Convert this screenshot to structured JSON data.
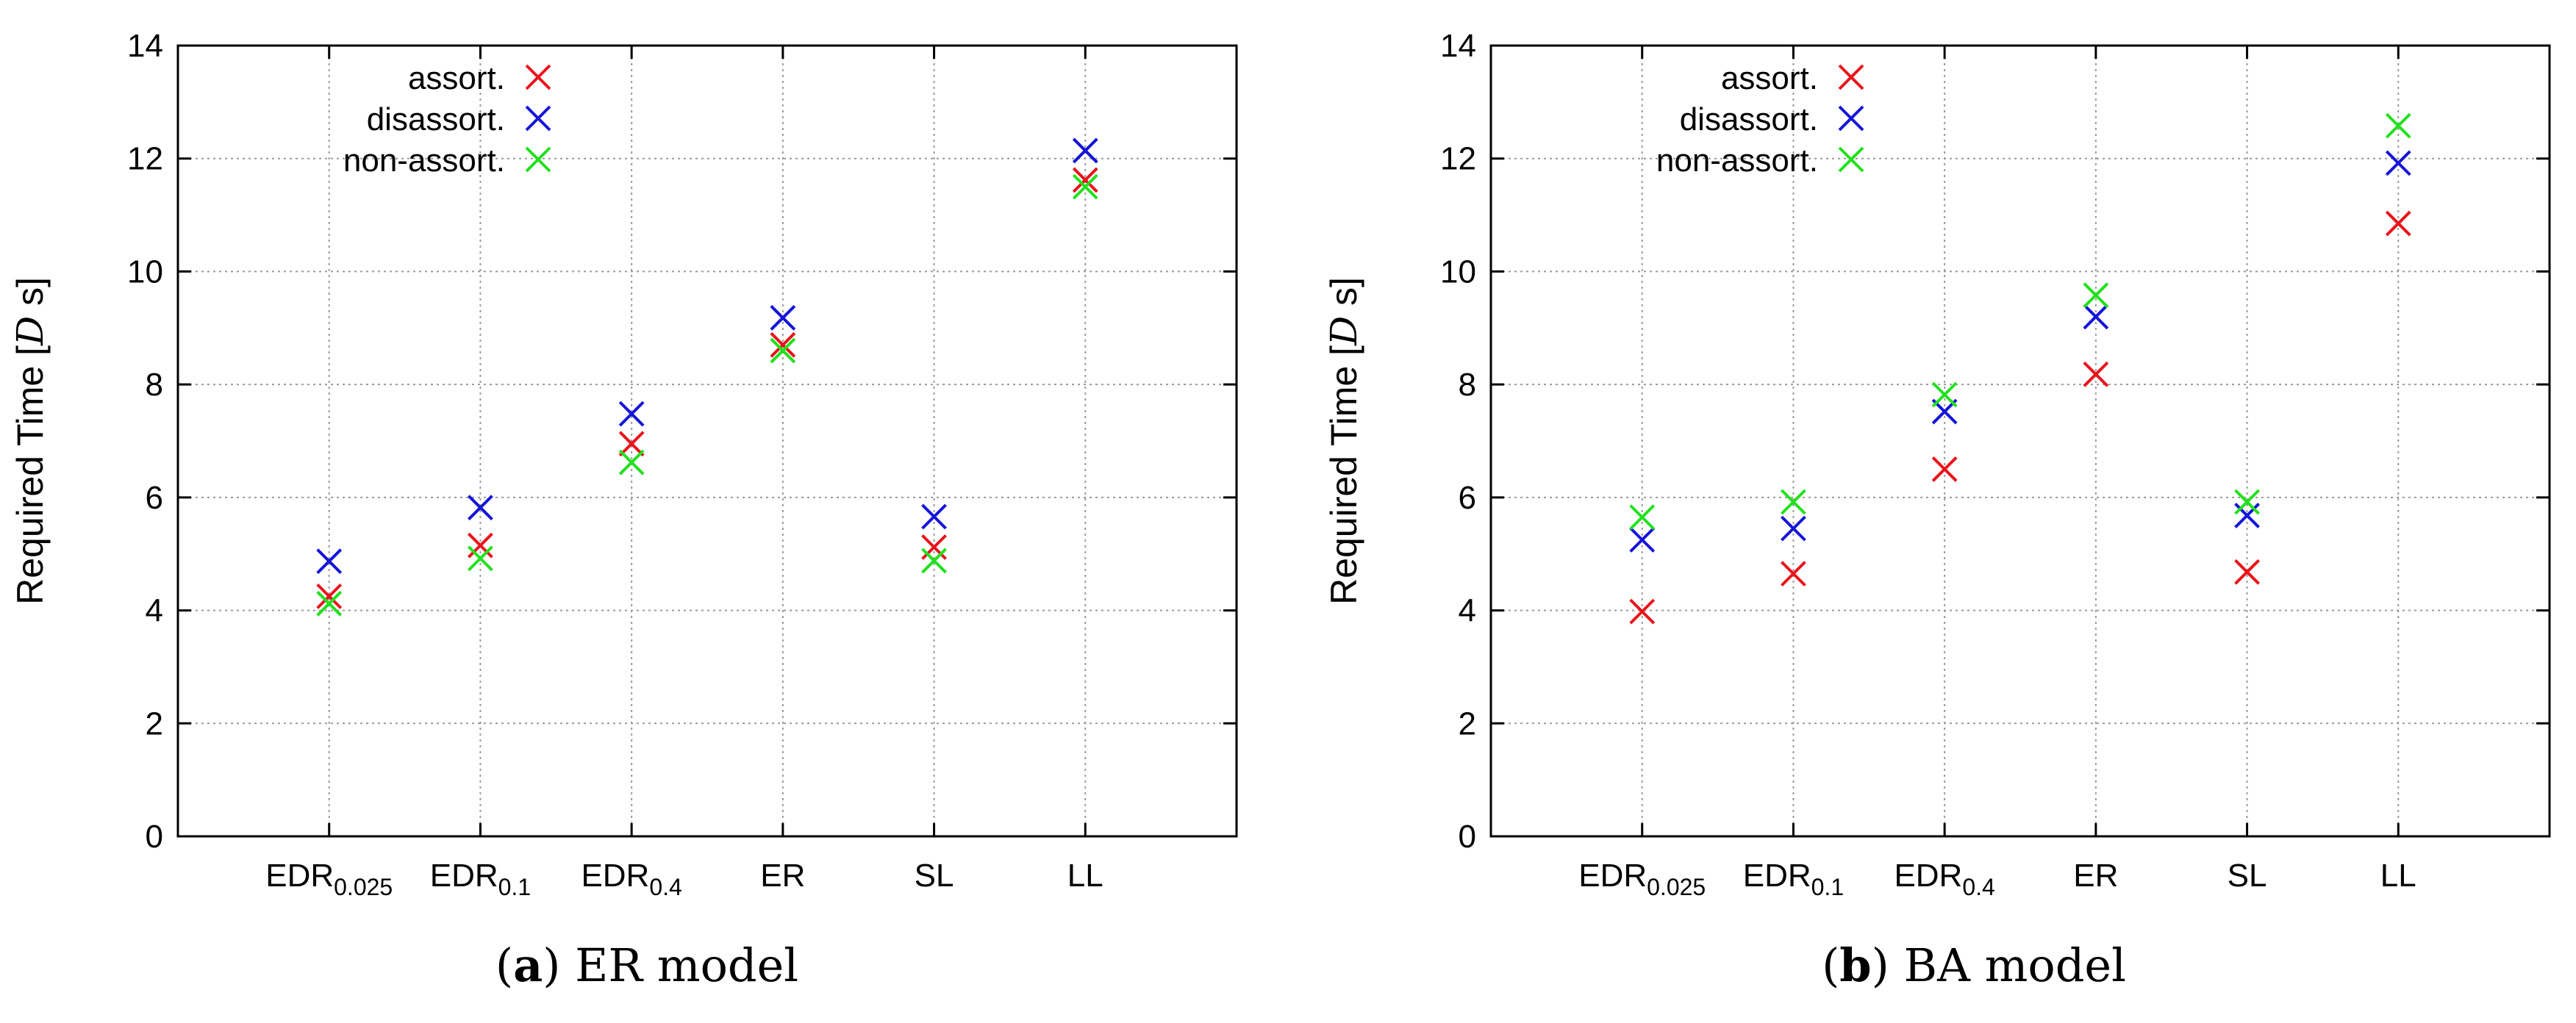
{
  "chart_data": [
    {
      "type": "scatter",
      "id": "a",
      "caption_letter": "(a)",
      "caption_text": "ER model",
      "ylabel": "Required Time [D s]",
      "ylabel_main": "Required Time [",
      "ylabel_var": "D",
      "ylabel_rest": " s]",
      "xlabel": "",
      "ylim": [
        0,
        14
      ],
      "yticks": [
        0,
        2,
        4,
        6,
        8,
        10,
        12,
        14
      ],
      "grid": true,
      "legend_position": "top-left",
      "categories": [
        {
          "base": "EDR",
          "sub": "0.025"
        },
        {
          "base": "EDR",
          "sub": "0.1"
        },
        {
          "base": "EDR",
          "sub": "0.4"
        },
        {
          "base": "ER",
          "sub": ""
        },
        {
          "base": "SL",
          "sub": ""
        },
        {
          "base": "LL",
          "sub": ""
        }
      ],
      "series": [
        {
          "name": "assort.",
          "color": "#e8141c",
          "values": [
            4.25,
            5.15,
            6.95,
            8.7,
            5.12,
            11.62
          ]
        },
        {
          "name": "disassort.",
          "color": "#1414d8",
          "values": [
            4.87,
            5.82,
            7.48,
            9.18,
            5.66,
            12.14
          ]
        },
        {
          "name": "non-assort.",
          "color": "#22e01e",
          "values": [
            4.12,
            4.92,
            6.62,
            8.6,
            4.88,
            11.5
          ]
        }
      ]
    },
    {
      "type": "scatter",
      "id": "b",
      "caption_letter": "(b)",
      "caption_text": "BA model",
      "ylabel": "Required Time [D s]",
      "ylabel_main": "Required Time [",
      "ylabel_var": "D",
      "ylabel_rest": " s]",
      "xlabel": "",
      "ylim": [
        0,
        14
      ],
      "yticks": [
        0,
        2,
        4,
        6,
        8,
        10,
        12,
        14
      ],
      "grid": true,
      "legend_position": "top-left",
      "categories": [
        {
          "base": "EDR",
          "sub": "0.025"
        },
        {
          "base": "EDR",
          "sub": "0.1"
        },
        {
          "base": "EDR",
          "sub": "0.4"
        },
        {
          "base": "ER",
          "sub": ""
        },
        {
          "base": "SL",
          "sub": ""
        },
        {
          "base": "LL",
          "sub": ""
        }
      ],
      "series": [
        {
          "name": "assort.",
          "color": "#e8141c",
          "values": [
            3.98,
            4.65,
            6.5,
            8.18,
            4.68,
            10.85
          ]
        },
        {
          "name": "disassort.",
          "color": "#1414d8",
          "values": [
            5.25,
            5.45,
            7.52,
            9.2,
            5.68,
            11.92
          ]
        },
        {
          "name": "non-assort.",
          "color": "#22e01e",
          "values": [
            5.65,
            5.92,
            7.82,
            9.58,
            5.92,
            12.58
          ]
        }
      ]
    }
  ]
}
